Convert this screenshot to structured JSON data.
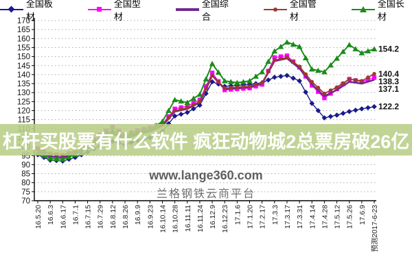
{
  "overlay_text": "杠杆买股票有什么软件 疯狂动物城2总票房破26亿",
  "watermark": {
    "line1": "www.lange360.com",
    "line2": "兰格钢铁云商平台"
  },
  "legend": [
    {
      "label": "全国板材",
      "color": "#1a1a8c",
      "marker": "diamond"
    },
    {
      "label": "全国型材",
      "color": "#ff00ff",
      "marker": "square"
    },
    {
      "label": "全国综合",
      "color": "#71288e",
      "marker": "line"
    },
    {
      "label": "全国管材",
      "color": "#9c3a2e",
      "marker": "circle"
    },
    {
      "label": "全国长材",
      "color": "#1a8c1a",
      "marker": "triangle"
    }
  ],
  "chart_data": {
    "type": "line",
    "title": "",
    "xlabel": "",
    "ylabel": "",
    "ylim": [
      70,
      170
    ],
    "ytick_step": 5,
    "grid": "dotted-horizontal",
    "legend_position": "top",
    "categories": [
      "16.5.20",
      "16.6.3",
      "16.6.17",
      "16.7.1",
      "16.7.15",
      "16.7.29",
      "16.8.12",
      "16.8.26",
      "16.9.9",
      "16.9.23",
      "16.10.14",
      "16.10.28",
      "16.11.11",
      "16.11.24",
      "16.12.9",
      "16.12.23",
      "17.1.6",
      "17.1.20",
      "17.2.17",
      "17.3.3",
      "17.3.17",
      "17.3.31",
      "17.4.14",
      "17.4.28",
      "17.5.12",
      "17.5.26",
      "17.6.9",
      "预测2017-6-23"
    ],
    "series": [
      {
        "name": "全国板材",
        "color": "#1a1a8c",
        "marker": "diamond",
        "line_width": 1.4,
        "end_label": "122.2",
        "values": [
          95.5,
          92.5,
          92,
          94,
          97,
          100.5,
          103,
          101,
          103.5,
          105,
          108.5,
          117,
          119,
          123,
          136,
          133.5,
          134,
          134.5,
          135.5,
          138.5,
          139.5,
          136.5,
          124,
          116,
          117.5,
          119.5,
          121,
          122.2
        ]
      },
      {
        "name": "全国型材",
        "color": "#ff00ff",
        "marker": "square",
        "line_width": 1.4,
        "end_label": "138.3",
        "values": [
          99,
          96,
          95,
          97,
          101,
          106.5,
          111,
          106.5,
          109,
          110.5,
          112.5,
          121,
          122.5,
          126,
          141,
          131.5,
          132,
          132.5,
          134.5,
          149.5,
          150.5,
          144,
          134,
          127,
          132,
          137.5,
          136,
          138.3
        ]
      },
      {
        "name": "全国综合",
        "color": "#71288e",
        "marker": "none",
        "line_width": 2.6,
        "end_label": "137.1",
        "values": [
          97.5,
          94.5,
          94,
          96,
          99.5,
          104,
          107.5,
          104.5,
          107,
          108.5,
          111.5,
          119.5,
          121,
          124.5,
          139.5,
          132,
          132.5,
          133,
          135,
          147.5,
          149,
          143.5,
          134.5,
          128,
          131.5,
          136,
          135,
          137.1
        ]
      },
      {
        "name": "全国管材",
        "color": "#9c3a2e",
        "marker": "circle",
        "line_width": 1.8,
        "end_label": "140.4",
        "values": [
          98.5,
          96,
          95.5,
          97.5,
          100.5,
          104.5,
          107,
          105,
          107.5,
          109,
          112,
          120,
          121.5,
          125,
          139.5,
          132.5,
          133,
          133.5,
          135.5,
          148,
          149.5,
          144.5,
          136,
          129.5,
          133,
          137.5,
          136.5,
          140.4
        ]
      },
      {
        "name": "全国长材",
        "color": "#1a8c1a",
        "marker": "triangle",
        "line_width": 2,
        "end_label": "154.2",
        "values": [
          96.5,
          93.5,
          93,
          95.5,
          100,
          105,
          109,
          105.5,
          108,
          109.5,
          114,
          126,
          124.5,
          129,
          146,
          136.5,
          135.5,
          136.5,
          141.5,
          153,
          158,
          155.5,
          143,
          141.5,
          149,
          156.5,
          152,
          154.2
        ]
      }
    ]
  }
}
